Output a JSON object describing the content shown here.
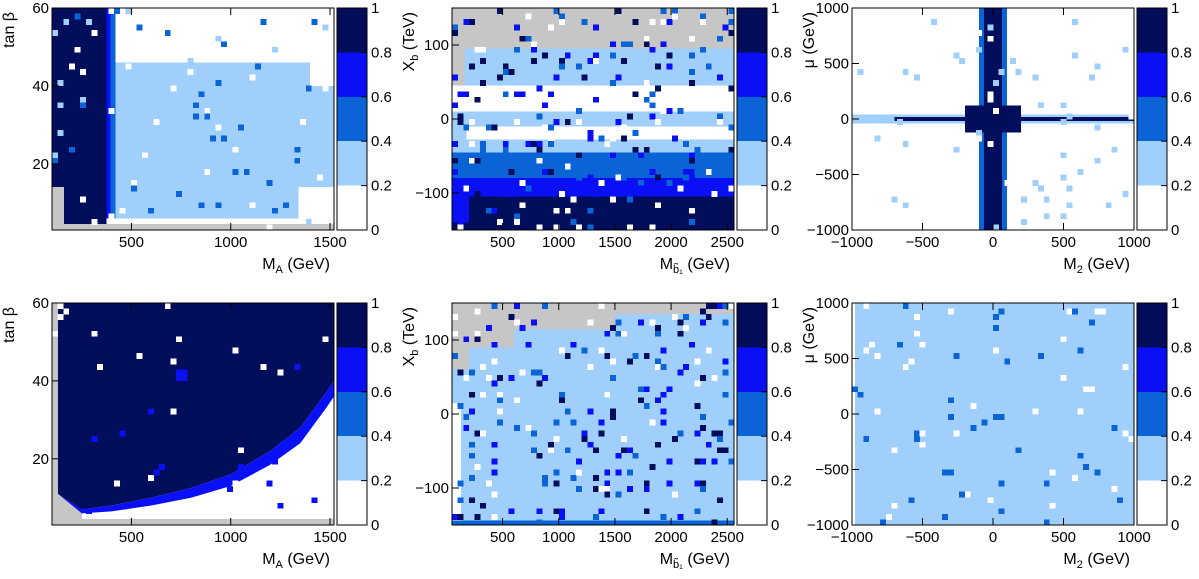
{
  "colors": {
    "bin_0": "#ffffff",
    "bin_1": "#9fcffa",
    "bin_2": "#0a64d6",
    "bin_3": "#0a10f5",
    "bin_4": "#020d5c",
    "excluded": "#c6c6c6",
    "frame": "#000000"
  },
  "chart_data": [
    {
      "id": "top-left",
      "type": "heatmap",
      "xlabel": {
        "main": "M",
        "sub": "A",
        "tail": " (GeV)"
      },
      "ylabel": {
        "main": "tan β"
      },
      "xlim": [
        100,
        1520
      ],
      "ylim": [
        3,
        60
      ],
      "xticks": [
        500,
        1000,
        1500
      ],
      "xtick_labels": [
        "500",
        "1000",
        "1500"
      ],
      "yticks": [
        20,
        40,
        60
      ],
      "ytick_labels": [
        "20",
        "40",
        "60"
      ],
      "colorbar": {
        "range": [
          0,
          1
        ],
        "ticks": [
          0,
          0.2,
          0.4,
          0.6,
          0.8,
          1
        ],
        "tick_labels": [
          "0",
          "0.2",
          "0.4",
          "0.6",
          "0.8",
          "1"
        ]
      },
      "regions": [
        {
          "x": [
            100,
            1520
          ],
          "y": [
            3,
            60
          ],
          "bin": 0
        },
        {
          "x": [
            100,
            170
          ],
          "y": [
            3,
            14
          ],
          "bin": "excluded"
        },
        {
          "x": [
            100,
            1520
          ],
          "y": [
            3,
            4.5
          ],
          "bin": "excluded"
        },
        {
          "x": [
            100,
            160
          ],
          "y": [
            14,
            60
          ],
          "bin": 4
        },
        {
          "x": [
            160,
            375
          ],
          "y": [
            4.5,
            60
          ],
          "bin": 4
        },
        {
          "x": [
            375,
            395
          ],
          "y": [
            6,
            60
          ],
          "bin": 3
        },
        {
          "x": [
            395,
            420
          ],
          "y": [
            6,
            60
          ],
          "bin": 2
        },
        {
          "x": [
            420,
            1520
          ],
          "y": [
            6,
            60
          ],
          "bin": 1
        },
        {
          "x": [
            420,
            1400
          ],
          "y": [
            46,
            60
          ],
          "bin": 0
        },
        {
          "x": [
            1400,
            1520
          ],
          "y": [
            40,
            60
          ],
          "bin": 0
        },
        {
          "x": [
            1340,
            1520
          ],
          "y": [
            6,
            14
          ],
          "bin": 0
        }
      ]
    },
    {
      "id": "top-middle",
      "type": "heatmap",
      "xlabel": {
        "main": "M",
        "sub": "b̃₁",
        "tail": " (GeV)"
      },
      "ylabel": {
        "main": "X",
        "sub": "b",
        "tail": " (TeV)"
      },
      "xlim": [
        50,
        2560
      ],
      "ylim": [
        -150,
        150
      ],
      "xticks": [
        500,
        1000,
        1500,
        2000,
        2500
      ],
      "xtick_labels": [
        "500",
        "1000",
        "1500",
        "2000",
        "2500"
      ],
      "yticks": [
        -100,
        0,
        100
      ],
      "ytick_labels": [
        "−100",
        "0",
        "100"
      ],
      "colorbar": {
        "range": [
          0,
          1
        ],
        "ticks": [
          0,
          0.2,
          0.4,
          0.6,
          0.8,
          1
        ],
        "tick_labels": [
          "0",
          "0.2",
          "0.4",
          "0.6",
          "0.8",
          "1"
        ]
      },
      "regions": [
        {
          "x": [
            50,
            2560
          ],
          "y": [
            -150,
            150
          ],
          "bin": "excluded"
        },
        {
          "x": [
            50,
            2560
          ],
          "y": [
            -150,
            45
          ],
          "bin": 1
        },
        {
          "x": [
            160,
            2560
          ],
          "y": [
            45,
            95
          ],
          "bin": 1
        },
        {
          "x": [
            50,
            2560
          ],
          "y": [
            10,
            45
          ],
          "bin": 0
        },
        {
          "x": [
            50,
            2560
          ],
          "y": [
            -10,
            10
          ],
          "bin": 1
        },
        {
          "x": [
            180,
            2560
          ],
          "y": [
            -28,
            -10
          ],
          "bin": 0
        },
        {
          "x": [
            50,
            2560
          ],
          "y": [
            -150,
            -45
          ],
          "bin": 2
        },
        {
          "x": [
            50,
            2560
          ],
          "y": [
            -150,
            -80
          ],
          "bin": 3
        },
        {
          "x": [
            200,
            2560
          ],
          "y": [
            -150,
            -105
          ],
          "bin": 4
        },
        {
          "x": [
            50,
            2560
          ],
          "y": [
            -150,
            -140
          ],
          "bin": 4
        }
      ]
    },
    {
      "id": "top-right",
      "type": "heatmap",
      "xlabel": {
        "main": "M",
        "sub": "2",
        "tail": " (GeV)"
      },
      "ylabel": {
        "main": "μ (GeV)"
      },
      "xlim": [
        -1000,
        1000
      ],
      "ylim": [
        -1000,
        1000
      ],
      "xticks": [
        -1000,
        -500,
        0,
        500,
        1000
      ],
      "xtick_labels": [
        "−1000",
        "−500",
        "0",
        "500",
        "1000"
      ],
      "yticks": [
        -1000,
        -500,
        0,
        500,
        1000
      ],
      "ytick_labels": [
        "−1000",
        "−500",
        "0",
        "500",
        "1000"
      ],
      "colorbar": {
        "range": [
          0,
          1
        ],
        "ticks": [
          0,
          0.2,
          0.4,
          0.6,
          0.8,
          1
        ],
        "tick_labels": [
          "0",
          "0.2",
          "0.4",
          "0.6",
          "0.8",
          "1"
        ]
      },
      "regions": [
        {
          "x": [
            -1000,
            1000
          ],
          "y": [
            -1000,
            1000
          ],
          "bin": 0
        },
        {
          "x": [
            -1000,
            1000
          ],
          "y": [
            -40,
            40
          ],
          "bin": 1
        },
        {
          "x": [
            -100,
            100
          ],
          "y": [
            -1000,
            1000
          ],
          "bin": 2
        },
        {
          "x": [
            -65,
            65
          ],
          "y": [
            -1000,
            1000
          ],
          "bin": 4
        },
        {
          "x": [
            -700,
            1000
          ],
          "y": [
            -18,
            18
          ],
          "bin": 4
        },
        {
          "x": [
            -200,
            200
          ],
          "y": [
            -120,
            120
          ],
          "bin": 4
        }
      ]
    },
    {
      "id": "bottom-left",
      "type": "heatmap",
      "xlabel": {
        "main": "M",
        "sub": "A",
        "tail": " (GeV)"
      },
      "ylabel": {
        "main": "tan β"
      },
      "xlim": [
        100,
        1520
      ],
      "ylim": [
        3,
        60
      ],
      "xticks": [
        500,
        1000,
        1500
      ],
      "xtick_labels": [
        "500",
        "1000",
        "1500"
      ],
      "yticks": [
        20,
        40,
        60
      ],
      "ytick_labels": [
        "20",
        "40",
        "60"
      ],
      "colorbar": {
        "range": [
          0,
          1
        ],
        "ticks": [
          0,
          0.2,
          0.4,
          0.6,
          0.8,
          1
        ],
        "tick_labels": [
          "0",
          "0.2",
          "0.4",
          "0.6",
          "0.8",
          "1"
        ]
      },
      "regions": [
        {
          "x": [
            100,
            1520
          ],
          "y": [
            3,
            60
          ],
          "bin": 0
        },
        {
          "x": [
            100,
            250
          ],
          "y": [
            3,
            13
          ],
          "bin": "excluded"
        },
        {
          "x": [
            100,
            1520
          ],
          "y": [
            3,
            4.5
          ],
          "bin": "excluded"
        },
        {
          "x": [
            100,
            130
          ],
          "y": [
            13,
            60
          ],
          "bin": "excluded"
        }
      ],
      "boundary": {
        "x": [
          130,
          250,
          400,
          600,
          800,
          1000,
          1200,
          1350,
          1480,
          1520
        ],
        "y": [
          11,
          7,
          8,
          10,
          12.5,
          16,
          22,
          28,
          37,
          40
        ],
        "band_width": [
          0,
          1,
          1.5,
          2,
          2.5,
          3,
          3.5,
          4,
          4,
          4
        ],
        "above_bin": 4,
        "band_bin": 3
      }
    },
    {
      "id": "bottom-middle",
      "type": "heatmap",
      "xlabel": {
        "main": "M",
        "sub": "b̃₁",
        "tail": " (GeV)"
      },
      "ylabel": {
        "main": "X",
        "sub": "b",
        "tail": " (TeV)"
      },
      "xlim": [
        50,
        2560
      ],
      "ylim": [
        -150,
        150
      ],
      "xticks": [
        500,
        1000,
        1500,
        2000,
        2500
      ],
      "xtick_labels": [
        "500",
        "1000",
        "1500",
        "2000",
        "2500"
      ],
      "yticks": [
        -100,
        0,
        100
      ],
      "ytick_labels": [
        "−100",
        "0",
        "100"
      ],
      "colorbar": {
        "range": [
          0,
          1
        ],
        "ticks": [
          0,
          0.2,
          0.4,
          0.6,
          0.8,
          1
        ],
        "tick_labels": [
          "0",
          "0.2",
          "0.4",
          "0.6",
          "0.8",
          "1"
        ]
      },
      "regions": [
        {
          "x": [
            50,
            2560
          ],
          "y": [
            -150,
            150
          ],
          "bin": "excluded"
        },
        {
          "x": [
            50,
            2560
          ],
          "y": [
            -150,
            60
          ],
          "bin": 1
        },
        {
          "x": [
            200,
            2560
          ],
          "y": [
            60,
            90
          ],
          "bin": 1
        },
        {
          "x": [
            600,
            2560
          ],
          "y": [
            90,
            115
          ],
          "bin": 1
        },
        {
          "x": [
            1500,
            2560
          ],
          "y": [
            115,
            135
          ],
          "bin": 1
        },
        {
          "x": [
            50,
            130
          ],
          "y": [
            -150,
            10
          ],
          "bin": 0
        },
        {
          "x": [
            50,
            2560
          ],
          "y": [
            -150,
            -144
          ],
          "bin": 2
        }
      ]
    },
    {
      "id": "bottom-right",
      "type": "heatmap",
      "xlabel": {
        "main": "M",
        "sub": "2",
        "tail": " (GeV)"
      },
      "ylabel": {
        "main": "μ (GeV)"
      },
      "xlim": [
        -1000,
        1000
      ],
      "ylim": [
        -1000,
        1000
      ],
      "xticks": [
        -1000,
        -500,
        0,
        500,
        1000
      ],
      "xtick_labels": [
        "−1000",
        "−500",
        "0",
        "500",
        "1000"
      ],
      "yticks": [
        -1000,
        -500,
        0,
        500,
        1000
      ],
      "ytick_labels": [
        "−1000",
        "−500",
        "0",
        "500",
        "1000"
      ],
      "colorbar": {
        "range": [
          0,
          1
        ],
        "ticks": [
          0,
          0.2,
          0.4,
          0.6,
          0.8,
          1
        ],
        "tick_labels": [
          "0",
          "0.2",
          "0.4",
          "0.6",
          "0.8",
          "1"
        ]
      },
      "regions": [
        {
          "x": [
            -1000,
            1000
          ],
          "y": [
            -1000,
            1000
          ],
          "bin": 1
        },
        {
          "x": [
            -1000,
            -980
          ],
          "y": [
            -1000,
            1000
          ],
          "bin": 0
        }
      ]
    }
  ]
}
